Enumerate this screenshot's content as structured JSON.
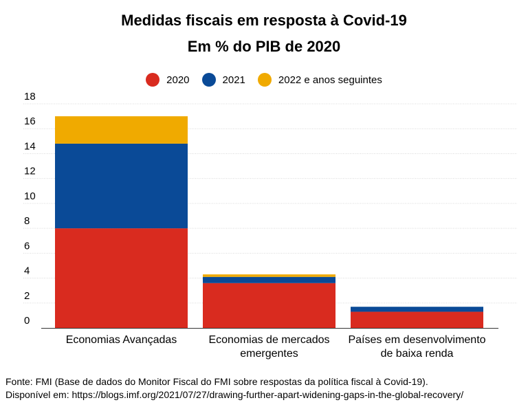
{
  "title_line1": "Medidas fiscais em resposta à Covid-19",
  "title_line2": "Em % do PIB de 2020",
  "chart_data": {
    "type": "bar",
    "stacked": true,
    "categories": [
      [
        "Economias Avançadas"
      ],
      [
        "Economias de mercados",
        "emergentes"
      ],
      [
        "Países em desenvolvimento",
        "de baixa renda"
      ]
    ],
    "series": [
      {
        "name": "2020",
        "color": "#d92b1f",
        "values": [
          8.0,
          3.6,
          1.3
        ]
      },
      {
        "name": "2021",
        "color": "#0a4a97",
        "values": [
          6.8,
          0.5,
          0.4
        ]
      },
      {
        "name": "2022 e anos seguintes",
        "color": "#f0aa00",
        "values": [
          2.2,
          0.2,
          0.0
        ]
      }
    ],
    "ylim": [
      0,
      18
    ],
    "yticks": [
      0,
      2,
      4,
      6,
      8,
      10,
      12,
      14,
      16,
      18
    ],
    "grid": true,
    "legend_position": "top-center"
  },
  "source_line1": "Fonte: FMI (Base de dados do Monitor Fiscal do FMI sobre respostas da política fiscal à Covid-19).",
  "source_line2": "Disponível em: https://blogs.imf.org/2021/07/27/drawing-further-apart-widening-gaps-in-the-global-recovery/"
}
